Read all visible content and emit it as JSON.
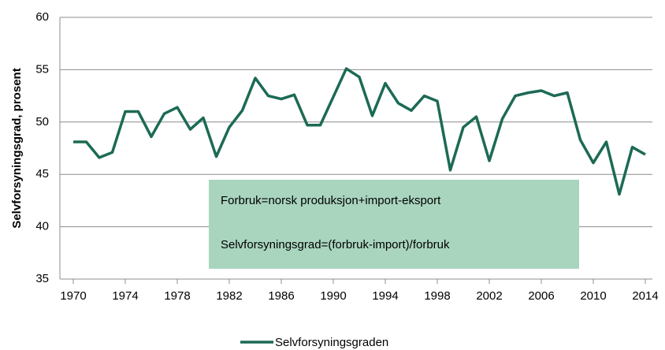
{
  "chart_data": {
    "type": "line",
    "y_label": "Selvforsyningsgrad, prosent",
    "annotations": [
      "Forbruk=norsk produksjon+import-eksport",
      "Selvforsyningsgrad=(forbruk-import)/forbruk"
    ],
    "annotation_color": "#a9d5bf",
    "x": [
      1970,
      1971,
      1972,
      1973,
      1974,
      1975,
      1976,
      1977,
      1978,
      1979,
      1980,
      1981,
      1982,
      1983,
      1984,
      1985,
      1986,
      1987,
      1988,
      1989,
      1990,
      1991,
      1992,
      1993,
      1994,
      1995,
      1996,
      1997,
      1998,
      1999,
      2000,
      2001,
      2002,
      2003,
      2004,
      2005,
      2006,
      2007,
      2008,
      2009,
      2010,
      2011,
      2012,
      2013,
      2014
    ],
    "series": [
      {
        "name": "Selvforsyningsgraden",
        "color": "#1c6a55",
        "values": [
          48.1,
          48.1,
          46.6,
          47.1,
          51.0,
          51.0,
          48.6,
          50.8,
          51.4,
          49.3,
          50.4,
          46.7,
          49.5,
          51.1,
          54.2,
          52.5,
          52.2,
          52.6,
          49.7,
          49.7,
          52.4,
          55.1,
          54.3,
          50.6,
          53.7,
          51.8,
          51.1,
          52.5,
          52.0,
          45.4,
          49.5,
          50.5,
          46.3,
          50.3,
          52.5,
          52.8,
          53.0,
          52.5,
          52.8,
          48.3,
          46.1,
          48.1,
          43.1,
          47.6,
          46.9
        ]
      }
    ],
    "xlim": [
      1970,
      2014
    ],
    "xticks": [
      1970,
      1974,
      1978,
      1982,
      1986,
      1990,
      1994,
      1998,
      2002,
      2006,
      2010,
      2014
    ],
    "ylim": [
      35,
      60
    ],
    "yticks": [
      35,
      40,
      45,
      50,
      55,
      60
    ],
    "grid": true,
    "legend": "bottom"
  }
}
